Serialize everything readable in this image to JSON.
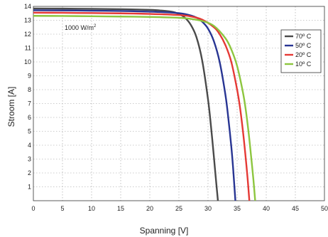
{
  "chart_data": {
    "type": "line",
    "title": "",
    "xlabel": "Spanning [V]",
    "ylabel": "Stroom [A]",
    "xlim": [
      0,
      50
    ],
    "ylim": [
      0,
      14
    ],
    "xticks": [
      0,
      5,
      10,
      15,
      20,
      25,
      30,
      35,
      40,
      45,
      50
    ],
    "yticks": [
      1,
      2,
      3,
      4,
      5,
      6,
      7,
      8,
      9,
      10,
      11,
      12,
      13,
      14
    ],
    "grid": true,
    "legend_position": "right",
    "annotation": {
      "base": "1000 W/m",
      "sup": "2"
    },
    "series": [
      {
        "name": "70º C",
        "color": "#4a4a4a",
        "x": [
          0,
          5,
          10,
          15,
          20,
          22,
          24,
          25,
          26,
          27,
          28,
          29,
          30,
          30.5,
          31,
          31.3,
          31.5,
          31.7
        ],
        "y": [
          13.85,
          13.84,
          13.82,
          13.8,
          13.75,
          13.7,
          13.6,
          13.45,
          13.2,
          12.7,
          11.8,
          10.1,
          7.3,
          5.4,
          3.2,
          1.8,
          0.9,
          0
        ]
      },
      {
        "name": "50º C",
        "color": "#283593",
        "x": [
          0,
          5,
          10,
          15,
          20,
          24,
          26,
          28,
          29,
          30,
          31,
          32,
          33,
          33.5,
          34,
          34.3,
          34.7
        ],
        "y": [
          13.72,
          13.71,
          13.69,
          13.67,
          13.62,
          13.55,
          13.45,
          13.2,
          12.9,
          12.4,
          11.5,
          10,
          7.6,
          5.9,
          3.9,
          2.4,
          0
        ]
      },
      {
        "name": "20º C",
        "color": "#e53935",
        "x": [
          0,
          5,
          10,
          15,
          20,
          25,
          27,
          29,
          31,
          32,
          33,
          34,
          35,
          35.5,
          36,
          36.4,
          36.8,
          37.1
        ],
        "y": [
          13.55,
          13.54,
          13.52,
          13.5,
          13.46,
          13.38,
          13.28,
          13.05,
          12.5,
          12,
          11.2,
          10,
          8,
          6.7,
          5,
          3.4,
          1.6,
          0
        ]
      },
      {
        "name": "10º C",
        "color": "#8dc63f",
        "x": [
          0,
          5,
          10,
          15,
          20,
          25,
          27,
          29,
          31,
          33,
          34,
          35,
          36,
          36.5,
          37,
          37.4,
          37.8,
          38.1
        ],
        "y": [
          13.32,
          13.31,
          13.29,
          13.27,
          13.24,
          13.18,
          13.1,
          12.95,
          12.6,
          11.7,
          10.9,
          9.7,
          7.8,
          6.5,
          4.8,
          3.2,
          1.5,
          0
        ]
      }
    ]
  }
}
